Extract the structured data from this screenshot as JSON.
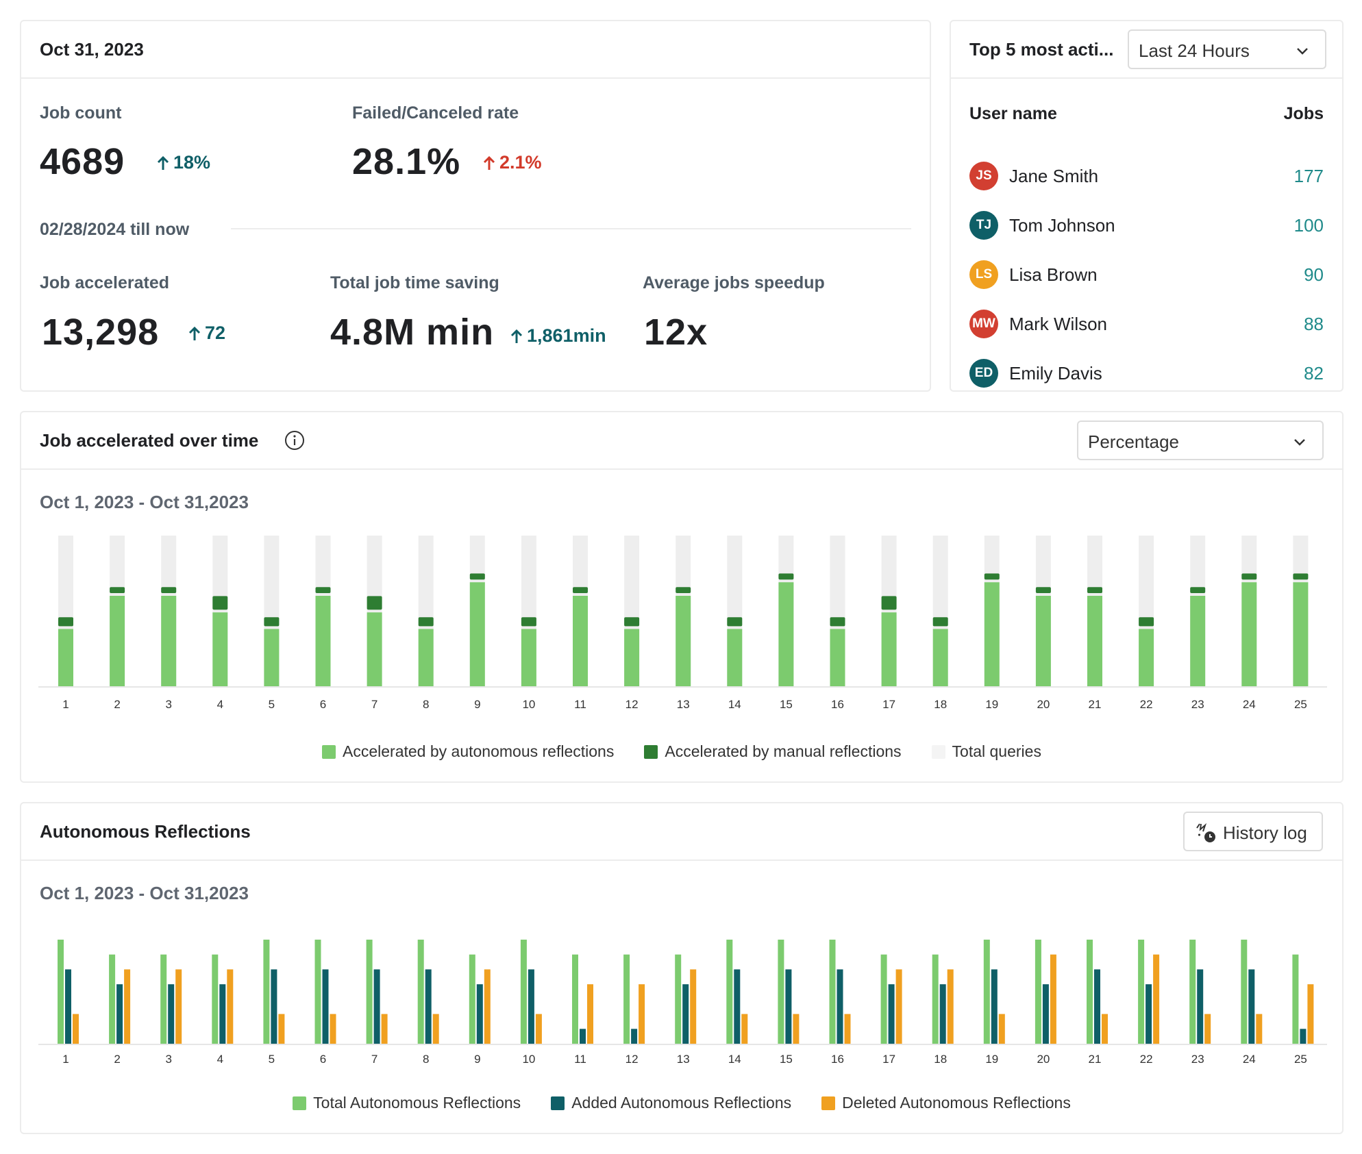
{
  "summary": {
    "date": "Oct 31, 2023",
    "job_count": {
      "label": "Job count",
      "value": "4689",
      "delta": "18%"
    },
    "failed_rate": {
      "label": "Failed/Canceled rate",
      "value": "28.1%",
      "delta": "2.1%"
    },
    "range_label": "02/28/2024 till now",
    "job_accelerated": {
      "label": "Job accelerated",
      "value": "13,298",
      "delta": "72"
    },
    "time_saving": {
      "label": "Total job time saving",
      "value": "4.8M min",
      "delta": "1,861min"
    },
    "speedup": {
      "label": "Average jobs speedup",
      "value": "12x"
    }
  },
  "top_users": {
    "title": "Top 5 most acti...",
    "filter": "Last 24 Hours",
    "col_user": "User name",
    "col_jobs": "Jobs",
    "users": [
      {
        "initials": "JS",
        "name": "Jane Smith",
        "jobs": "177",
        "color": "#d23f31"
      },
      {
        "initials": "TJ",
        "name": "Tom Johnson",
        "jobs": "100",
        "color": "#0f5f67"
      },
      {
        "initials": "LS",
        "name": "Lisa Brown",
        "jobs": "90",
        "color": "#f0a020"
      },
      {
        "initials": "MW",
        "name": "Mark Wilson",
        "jobs": "88",
        "color": "#d23f31"
      },
      {
        "initials": "ED",
        "name": "Emily Davis",
        "jobs": "82",
        "color": "#0f5f67"
      }
    ]
  },
  "accel_chart": {
    "title": "Job accelerated over time",
    "filter": "Percentage",
    "range": "Oct 1, 2023 - Oct 31,2023",
    "colors": {
      "autonomous": "#7ccb6e",
      "manual": "#2e7d32",
      "total": "#eeeeee"
    },
    "legend": [
      "Accelerated by autonomous reflections",
      "Accelerated by manual reflections",
      "Total queries"
    ]
  },
  "auto_chart": {
    "title": "Autonomous Reflections",
    "button": "History log",
    "range": "Oct 1, 2023 - Oct 31,2023",
    "colors": {
      "total": "#7ccb6e",
      "added": "#0f5f67",
      "deleted": "#f0a020"
    },
    "legend": [
      "Total Autonomous Reflections",
      "Added Autonomous Reflections",
      "Deleted Autonomous Reflections"
    ]
  },
  "chart_data": [
    {
      "type": "bar",
      "title": "Job accelerated over time",
      "categories": [
        "1",
        "2",
        "3",
        "4",
        "5",
        "6",
        "7",
        "8",
        "9",
        "10",
        "11",
        "12",
        "13",
        "14",
        "15",
        "16",
        "17",
        "18",
        "19",
        "20",
        "21",
        "22",
        "23",
        "24",
        "25"
      ],
      "ylim": [
        0,
        100
      ],
      "series": [
        {
          "name": "Accelerated by autonomous reflections",
          "values": [
            38,
            60,
            60,
            49,
            38,
            60,
            49,
            38,
            69,
            38,
            60,
            38,
            60,
            38,
            69,
            38,
            49,
            38,
            69,
            60,
            60,
            38,
            60,
            69,
            69
          ]
        },
        {
          "name": "Accelerated by manual reflections",
          "values": [
            6,
            4,
            4,
            9,
            6,
            4,
            9,
            6,
            4,
            6,
            4,
            6,
            4,
            6,
            4,
            6,
            9,
            6,
            4,
            4,
            4,
            6,
            4,
            4,
            4
          ]
        },
        {
          "name": "Total queries",
          "values": [
            100,
            100,
            100,
            100,
            100,
            100,
            100,
            100,
            100,
            100,
            100,
            100,
            100,
            100,
            100,
            100,
            100,
            100,
            100,
            100,
            100,
            100,
            100,
            100,
            100
          ]
        }
      ]
    },
    {
      "type": "bar",
      "title": "Autonomous Reflections",
      "categories": [
        "1",
        "2",
        "3",
        "4",
        "5",
        "6",
        "7",
        "8",
        "9",
        "10",
        "11",
        "12",
        "13",
        "14",
        "15",
        "16",
        "17",
        "18",
        "19",
        "20",
        "21",
        "22",
        "23",
        "24",
        "25"
      ],
      "ylim": [
        0,
        7
      ],
      "series": [
        {
          "name": "Total Autonomous Reflections",
          "values": [
            7,
            6,
            6,
            6,
            7,
            7,
            7,
            7,
            6,
            7,
            6,
            6,
            6,
            7,
            7,
            7,
            6,
            6,
            7,
            7,
            7,
            7,
            7,
            7,
            6
          ]
        },
        {
          "name": "Added Autonomous Reflections",
          "values": [
            5,
            4,
            4,
            4,
            5,
            5,
            5,
            5,
            4,
            5,
            1,
            1,
            4,
            5,
            5,
            5,
            4,
            4,
            5,
            4,
            5,
            4,
            5,
            5,
            1
          ]
        },
        {
          "name": "Deleted Autonomous Reflections",
          "values": [
            2,
            5,
            5,
            5,
            2,
            2,
            2,
            2,
            5,
            2,
            4,
            4,
            5,
            2,
            2,
            2,
            5,
            5,
            2,
            6,
            2,
            6,
            2,
            2,
            4
          ]
        }
      ]
    }
  ]
}
